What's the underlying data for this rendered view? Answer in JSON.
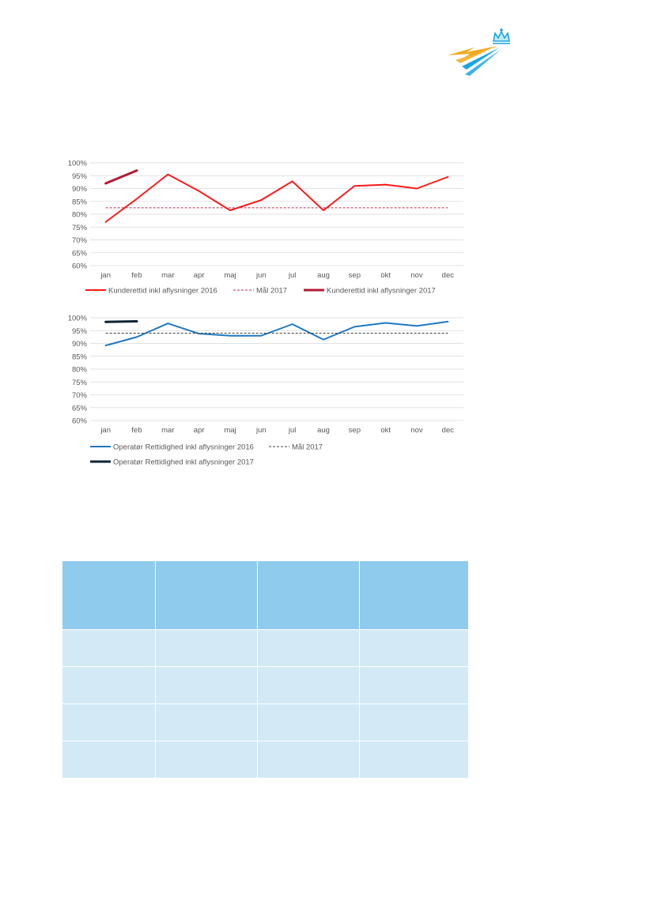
{
  "colors": {
    "logo_blue": "#1aa6e0",
    "logo_yellow": "#f3a81c",
    "table_header": "#8ecbec",
    "table_body": "#d3e9f6"
  },
  "logo": {
    "icon": "crown-arrows-logo"
  },
  "charts": [
    {
      "id": "customer-punctuality",
      "type": "line",
      "categories": [
        "jan",
        "feb",
        "mar",
        "apr",
        "maj",
        "jun",
        "jul",
        "aug",
        "sep",
        "okt",
        "nov",
        "dec"
      ],
      "ylim": [
        60,
        100
      ],
      "yticks": [
        60,
        65,
        70,
        75,
        80,
        85,
        90,
        95,
        100
      ],
      "ytick_labels": [
        "60%",
        "65%",
        "70%",
        "75%",
        "80%",
        "85%",
        "90%",
        "95%",
        "100%"
      ],
      "grid": true,
      "legend_placement": "bottom",
      "series": [
        {
          "name": "Kunderettid inkl aflysninger 2016",
          "color": "#ff1a1a",
          "style": "solid",
          "width": 2,
          "values": [
            77,
            86,
            95.5,
            89,
            81.5,
            85.5,
            92.8,
            81.5,
            91,
            91.5,
            90,
            94.5
          ]
        },
        {
          "name": "Mål 2017",
          "color": "#c0304a",
          "style": "dashed",
          "width": 1,
          "values": [
            82.5,
            82.5,
            82.5,
            82.5,
            82.5,
            82.5,
            82.5,
            82.5,
            82.5,
            82.5,
            82.5,
            82.5
          ]
        },
        {
          "name": "Kunderettid inkl aflysninger 2017",
          "color": "#b31b34",
          "style": "solid",
          "width": 3,
          "values": [
            92,
            97
          ]
        }
      ]
    },
    {
      "id": "operator-punctuality",
      "type": "line",
      "categories": [
        "jan",
        "feb",
        "mar",
        "apr",
        "maj",
        "jun",
        "jul",
        "aug",
        "sep",
        "okt",
        "nov",
        "dec"
      ],
      "ylim": [
        60,
        100
      ],
      "yticks": [
        60,
        65,
        70,
        75,
        80,
        85,
        90,
        95,
        100
      ],
      "ytick_labels": [
        "60%",
        "65%",
        "70%",
        "75%",
        "80%",
        "85%",
        "90%",
        "95%",
        "100%"
      ],
      "grid": true,
      "legend_placement": "bottom",
      "series": [
        {
          "name": "Operatør Rettidighed inkl aflysninger 2016",
          "color": "#1f78c1",
          "style": "solid",
          "width": 2,
          "values": [
            89.2,
            92.5,
            97.8,
            93.8,
            93,
            93,
            97.5,
            91.5,
            96.5,
            98,
            96.8,
            98.5
          ]
        },
        {
          "name": "Mål 2017",
          "color": "#404040",
          "style": "dashed",
          "width": 1,
          "values": [
            94,
            94,
            94,
            94,
            94,
            94,
            94,
            94,
            94,
            94,
            94,
            94
          ]
        },
        {
          "name": "Operatør Rettidighed inkl aflysninger 2017",
          "color": "#0d2436",
          "style": "solid",
          "width": 3,
          "values": [
            98.4,
            98.6
          ]
        }
      ]
    }
  ],
  "table": {
    "columns": 4,
    "body_rows": 4
  }
}
